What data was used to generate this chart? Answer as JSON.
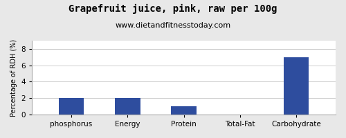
{
  "title": "Grapefruit juice, pink, raw per 100g",
  "subtitle": "www.dietandfitnesstoday.com",
  "categories": [
    "phosphorus",
    "Energy",
    "Protein",
    "Total-Fat",
    "Carbohydrate"
  ],
  "values": [
    2,
    2,
    1,
    0,
    7
  ],
  "bar_color": "#2e4d9e",
  "ylabel": "Percentage of RDH (%)",
  "ylim": [
    0,
    9
  ],
  "yticks": [
    0,
    2,
    4,
    6,
    8
  ],
  "background_color": "#e8e8e8",
  "plot_bg_color": "#ffffff",
  "title_fontsize": 10,
  "subtitle_fontsize": 8,
  "ylabel_fontsize": 7,
  "tick_fontsize": 7.5
}
